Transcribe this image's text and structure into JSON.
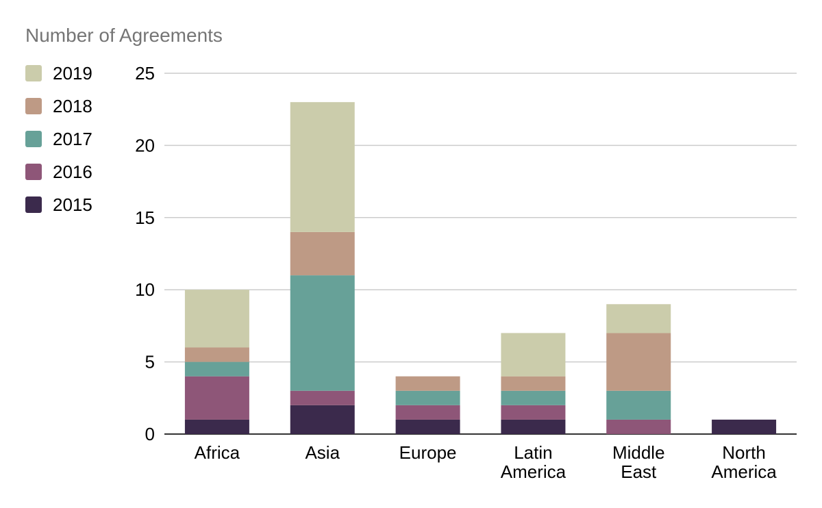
{
  "chart_data": {
    "type": "bar",
    "stacked": true,
    "title": "Number of Agreements",
    "xlabel": "",
    "ylabel": "",
    "ylim": [
      0,
      25
    ],
    "yticks": [
      0,
      5,
      10,
      15,
      20,
      25
    ],
    "grid": true,
    "legend_position": "left",
    "categories": [
      [
        "Africa"
      ],
      [
        "Asia"
      ],
      [
        "Europe"
      ],
      [
        "Latin",
        "America"
      ],
      [
        "Middle",
        "East"
      ],
      [
        "North",
        "America"
      ]
    ],
    "series": [
      {
        "name": "2015",
        "color": "#3b2a4c",
        "values": [
          1,
          2,
          1,
          1,
          0,
          1
        ]
      },
      {
        "name": "2016",
        "color": "#8e5678",
        "values": [
          3,
          1,
          1,
          1,
          1,
          0
        ]
      },
      {
        "name": "2017",
        "color": "#67a198",
        "values": [
          1,
          8,
          1,
          1,
          2,
          0
        ]
      },
      {
        "name": "2018",
        "color": "#be9a85",
        "values": [
          1,
          3,
          1,
          1,
          4,
          0
        ]
      },
      {
        "name": "2019",
        "color": "#cbccab",
        "values": [
          4,
          9,
          0,
          3,
          2,
          0
        ]
      }
    ],
    "legend_order": [
      "2019",
      "2018",
      "2017",
      "2016",
      "2015"
    ]
  }
}
